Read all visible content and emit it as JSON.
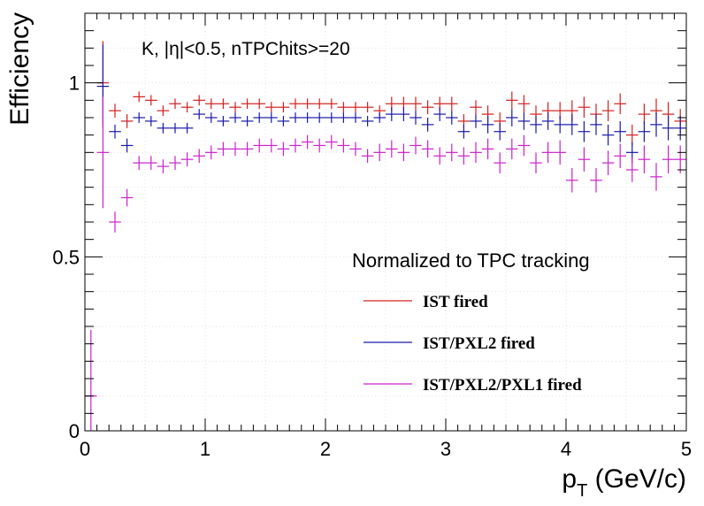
{
  "chart_data": {
    "type": "scatter",
    "annotation": "K, |η|<0.5, nTPChits>=20",
    "xlabel_main": "p",
    "xlabel_sub": "T",
    "xlabel_unit": " (GeV/c)",
    "ylabel": "Efficiency",
    "xlim": [
      0,
      5
    ],
    "ylim": [
      0,
      1.2
    ],
    "x_ticks": [
      0,
      1,
      2,
      3,
      4,
      5
    ],
    "y_ticks": [
      0,
      0.5,
      1
    ],
    "x_tick_labels": [
      "0",
      "1",
      "2",
      "3",
      "4",
      "5"
    ],
    "y_tick_labels": [
      "0",
      "0.5",
      "1"
    ],
    "x_bin_halfwidth": 0.05,
    "grid": true,
    "legend_title": "Normalized to TPC tracking",
    "legend_position": "bottom-right",
    "x": [
      0.15,
      0.25,
      0.35,
      0.45,
      0.55,
      0.65,
      0.75,
      0.85,
      0.95,
      1.05,
      1.15,
      1.25,
      1.35,
      1.45,
      1.55,
      1.65,
      1.75,
      1.85,
      1.95,
      2.05,
      2.15,
      2.25,
      2.35,
      2.45,
      2.55,
      2.65,
      2.75,
      2.85,
      2.95,
      3.05,
      3.15,
      3.25,
      3.35,
      3.45,
      3.55,
      3.65,
      3.75,
      3.85,
      3.95,
      4.05,
      4.15,
      4.25,
      4.35,
      4.45,
      4.55,
      4.65,
      4.75,
      4.85,
      4.95
    ],
    "series": [
      {
        "name": "IST fired",
        "color": "#d42020",
        "values": [
          1.0,
          0.92,
          0.89,
          0.96,
          0.95,
          0.92,
          0.94,
          0.93,
          0.95,
          0.94,
          0.94,
          0.93,
          0.94,
          0.94,
          0.93,
          0.93,
          0.94,
          0.94,
          0.94,
          0.94,
          0.93,
          0.93,
          0.93,
          0.92,
          0.94,
          0.94,
          0.94,
          0.93,
          0.94,
          0.94,
          0.89,
          0.93,
          0.91,
          0.89,
          0.95,
          0.94,
          0.91,
          0.92,
          0.92,
          0.92,
          0.93,
          0.91,
          0.92,
          0.94,
          0.85,
          0.91,
          0.92,
          0.91,
          0.89
        ],
        "errors": [
          0.12,
          0.02,
          0.02,
          0.015,
          0.015,
          0.015,
          0.015,
          0.015,
          0.015,
          0.015,
          0.015,
          0.015,
          0.015,
          0.015,
          0.015,
          0.015,
          0.015,
          0.015,
          0.015,
          0.015,
          0.015,
          0.015,
          0.015,
          0.015,
          0.02,
          0.02,
          0.02,
          0.02,
          0.02,
          0.02,
          0.02,
          0.02,
          0.025,
          0.025,
          0.025,
          0.025,
          0.025,
          0.025,
          0.025,
          0.03,
          0.03,
          0.03,
          0.03,
          0.03,
          0.03,
          0.03,
          0.035,
          0.035,
          0.035
        ]
      },
      {
        "name": "IST/PXL2 fired",
        "color": "#1a1aaa",
        "values": [
          0.99,
          0.86,
          0.82,
          0.9,
          0.89,
          0.87,
          0.87,
          0.87,
          0.91,
          0.9,
          0.89,
          0.9,
          0.89,
          0.9,
          0.9,
          0.89,
          0.9,
          0.9,
          0.9,
          0.9,
          0.9,
          0.9,
          0.89,
          0.9,
          0.91,
          0.91,
          0.9,
          0.88,
          0.91,
          0.9,
          0.86,
          0.89,
          0.88,
          0.86,
          0.9,
          0.89,
          0.88,
          0.89,
          0.88,
          0.88,
          0.86,
          0.88,
          0.85,
          0.86,
          0.8,
          0.86,
          0.88,
          0.87,
          0.87
        ],
        "errors": [
          0.12,
          0.02,
          0.02,
          0.015,
          0.015,
          0.015,
          0.015,
          0.015,
          0.015,
          0.015,
          0.015,
          0.015,
          0.015,
          0.015,
          0.015,
          0.015,
          0.015,
          0.015,
          0.015,
          0.015,
          0.015,
          0.015,
          0.015,
          0.015,
          0.02,
          0.02,
          0.02,
          0.02,
          0.02,
          0.02,
          0.02,
          0.02,
          0.025,
          0.025,
          0.025,
          0.025,
          0.025,
          0.025,
          0.025,
          0.03,
          0.03,
          0.03,
          0.03,
          0.03,
          0.03,
          0.03,
          0.035,
          0.035,
          0.035
        ]
      },
      {
        "name": "IST/PXL2/PXL1 fired",
        "color": "#cc22cc",
        "values": [
          0.8,
          0.6,
          0.67,
          0.77,
          0.77,
          0.76,
          0.77,
          0.78,
          0.79,
          0.8,
          0.81,
          0.81,
          0.81,
          0.82,
          0.82,
          0.81,
          0.82,
          0.83,
          0.82,
          0.83,
          0.82,
          0.81,
          0.79,
          0.8,
          0.81,
          0.8,
          0.82,
          0.81,
          0.79,
          0.8,
          0.79,
          0.8,
          0.81,
          0.77,
          0.81,
          0.82,
          0.77,
          0.8,
          0.8,
          0.72,
          0.78,
          0.72,
          0.77,
          0.79,
          0.75,
          0.78,
          0.73,
          0.78,
          0.78
        ],
        "errors": [
          0.16,
          0.03,
          0.025,
          0.02,
          0.02,
          0.02,
          0.02,
          0.02,
          0.02,
          0.02,
          0.02,
          0.02,
          0.02,
          0.02,
          0.02,
          0.02,
          0.02,
          0.02,
          0.02,
          0.02,
          0.02,
          0.02,
          0.02,
          0.025,
          0.025,
          0.025,
          0.025,
          0.025,
          0.025,
          0.025,
          0.025,
          0.03,
          0.03,
          0.03,
          0.03,
          0.03,
          0.03,
          0.03,
          0.035,
          0.035,
          0.035,
          0.035,
          0.035,
          0.035,
          0.035,
          0.04,
          0.04,
          0.04,
          0.04
        ]
      }
    ],
    "extra_point": {
      "series": "IST/PXL2/PXL1 fired",
      "x": 0.05,
      "value": 0.1,
      "error_low": 0.1,
      "error_high": 0.19
    }
  }
}
